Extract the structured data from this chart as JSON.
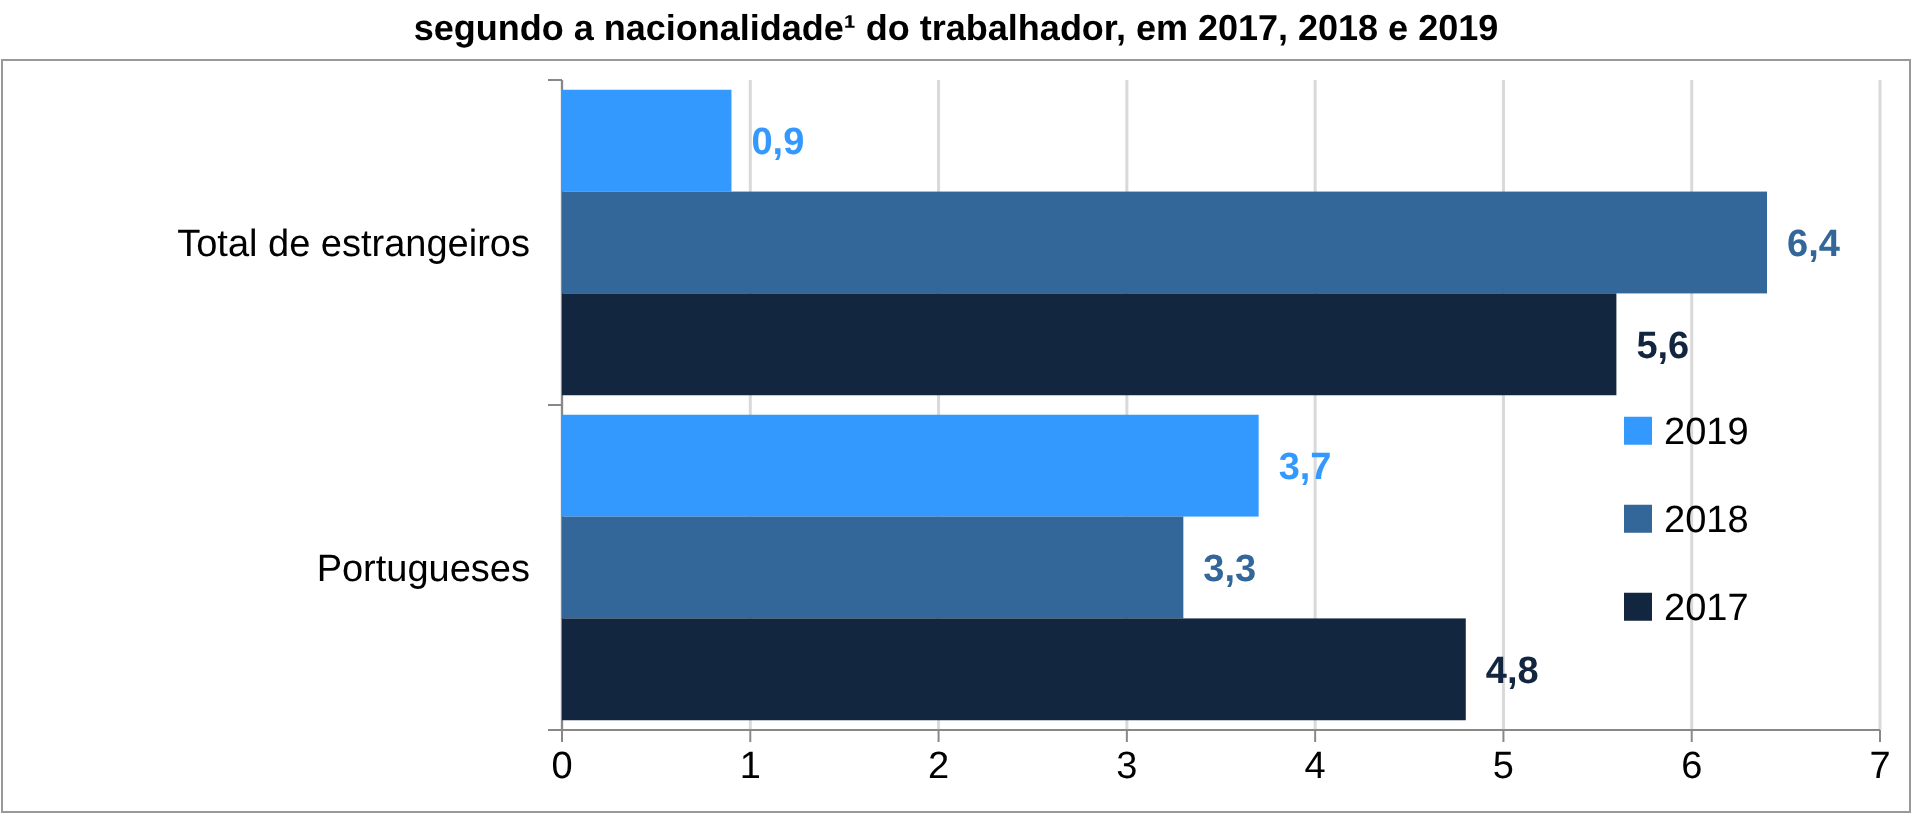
{
  "chart_data": {
    "type": "bar",
    "orientation": "horizontal",
    "title": "segundo a nacionalidade¹ do trabalhador, em 2017, 2018 e 2019",
    "categories": [
      "Total de estrangeiros",
      "Portugueses"
    ],
    "series": [
      {
        "name": "2019",
        "color": "#3399ff",
        "values": [
          0.9,
          3.7
        ],
        "value_labels": [
          "0,9",
          "3,7"
        ]
      },
      {
        "name": "2018",
        "color": "#336699",
        "values": [
          6.4,
          3.3
        ],
        "value_labels": [
          "6,4",
          "3,3"
        ]
      },
      {
        "name": "2017",
        "color": "#13263f",
        "values": [
          5.6,
          4.8
        ],
        "value_labels": [
          "5,6",
          "4,8"
        ]
      }
    ],
    "xlim": [
      0,
      7
    ],
    "xticks": [
      0,
      1,
      2,
      3,
      4,
      5,
      6,
      7
    ],
    "grid": "x",
    "legend": "right"
  }
}
